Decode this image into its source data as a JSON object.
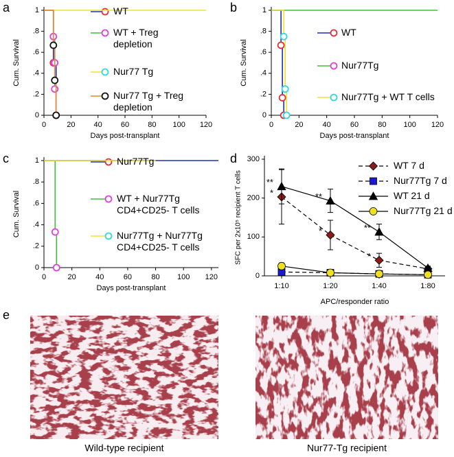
{
  "chart_data": [
    {
      "label": "a",
      "type": "survival",
      "xlabel": "Days post-transplant",
      "ylabel": "Cum. Survival",
      "xlim": [
        0,
        120
      ],
      "xticks": [
        0,
        20,
        40,
        60,
        80,
        100,
        120
      ],
      "ylim": [
        0,
        1
      ],
      "yticks": [
        0,
        {
          "value": 0.2,
          "label": ".2"
        },
        {
          "value": 0.4,
          "label": ".4"
        },
        {
          "value": 0.6,
          "label": ".6"
        },
        {
          "value": 0.8,
          "label": ".8"
        },
        1
      ],
      "series": [
        {
          "name": "WT",
          "color": "#1f2fb5",
          "marker_color": "#e0303a",
          "x": [
            0,
            7,
            9
          ],
          "values": [
            1,
            0.5,
            0
          ]
        },
        {
          "name": "WT + Treg depletion",
          "color": "#3fc23f",
          "marker_color": "#e040e0",
          "x": [
            0,
            7,
            8,
            8,
            9
          ],
          "values": [
            1,
            0.75,
            0.5,
            0.25,
            0
          ]
        },
        {
          "name": "Nur77 Tg",
          "color": "#f2e030",
          "marker_color": "#30d8e0",
          "x": [
            0,
            120
          ],
          "values": [
            1,
            1
          ]
        },
        {
          "name": "Nur77 Tg + Treg depletion",
          "color": "#e8852a",
          "marker_color": "#111111",
          "x": [
            0,
            7,
            8,
            9
          ],
          "values": [
            1,
            0.667,
            0.333,
            0
          ]
        }
      ]
    },
    {
      "label": "b",
      "type": "survival",
      "xlabel": "Days post-transplant",
      "ylabel": "Cum. Survival",
      "xlim": [
        0,
        120
      ],
      "xticks": [
        0,
        20,
        40,
        60,
        80,
        100,
        120
      ],
      "ylim": [
        0,
        1
      ],
      "yticks": [
        0,
        {
          "value": 0.2,
          "label": ".2"
        },
        {
          "value": 0.4,
          "label": ".4"
        },
        {
          "value": 0.6,
          "label": ".6"
        },
        {
          "value": 0.8,
          "label": ".8"
        },
        1
      ],
      "series": [
        {
          "name": "WT",
          "color": "#1f2fb5",
          "marker_color": "#e0303a",
          "x": [
            0,
            7,
            8,
            9
          ],
          "values": [
            1,
            0.667,
            0.167,
            0
          ]
        },
        {
          "name": "Nur77Tg",
          "color": "#3fc23f",
          "marker_color": "#e040e0",
          "x": [
            0,
            120
          ],
          "values": [
            1,
            1
          ]
        },
        {
          "name": "Nur77Tg + WT T cells",
          "color": "#f2e030",
          "marker_color": "#30d8e0",
          "x": [
            0,
            9,
            10,
            11
          ],
          "values": [
            1,
            0.75,
            0.25,
            0
          ]
        }
      ]
    },
    {
      "label": "c",
      "type": "survival",
      "xlabel": "Days post-transplant",
      "ylabel": "Cum. Survival",
      "xlim": [
        0,
        125
      ],
      "xticks": [
        0,
        20,
        40,
        60,
        80,
        100,
        120
      ],
      "ylim": [
        0,
        1
      ],
      "yticks": [
        0,
        {
          "value": 0.2,
          "label": ".2"
        },
        {
          "value": 0.4,
          "label": ".4"
        },
        {
          "value": 0.6,
          "label": ".6"
        },
        {
          "value": 0.8,
          "label": ".8"
        },
        1
      ],
      "series": [
        {
          "name": "Nur77Tg",
          "color": "#1f2fb5",
          "marker_color": "#e0303a",
          "x": [
            0,
            125
          ],
          "values": [
            1,
            1
          ]
        },
        {
          "name": "WT + Nur77Tg CD4+CD25- T cells",
          "color": "#3fc23f",
          "marker_color": "#e040e0",
          "x": [
            0,
            8,
            9
          ],
          "values": [
            1,
            0.333,
            0
          ]
        },
        {
          "name": "Nur77Tg + Nur77Tg CD4+CD25- T cells",
          "color": "#f2e030",
          "marker_color": "#30d8e0",
          "x": [
            0,
            80
          ],
          "values": [
            1,
            1
          ]
        }
      ]
    },
    {
      "label": "d",
      "type": "line",
      "xlabel": "APC/responder ratio",
      "ylabel": "SFC per 2x10⁵ recipient T cells",
      "categories": [
        "1:10",
        "1:20",
        "1:40",
        "1:80"
      ],
      "ylim": [
        0,
        300
      ],
      "yticks": [
        0,
        100,
        200,
        300
      ],
      "series": [
        {
          "name": "WT 7 d",
          "color": "#8b1a1a",
          "marker": "diamond",
          "dashed": true,
          "values": [
            203,
            105,
            40,
            18
          ],
          "errors": [
            70,
            38,
            18,
            5
          ]
        },
        {
          "name": "Nur77Tg 7 d",
          "color": "#1a1ad0",
          "marker": "square",
          "dashed": true,
          "values": [
            10,
            8,
            5,
            3
          ],
          "errors": [
            5,
            4,
            3,
            2
          ]
        },
        {
          "name": "WT 21 d",
          "color": "#000000",
          "marker": "triangle",
          "dashed": false,
          "values": [
            230,
            193,
            113,
            20
          ],
          "errors": [
            45,
            30,
            20,
            5
          ]
        },
        {
          "name": "Nur77Tg 21 d",
          "color": "#f0e020",
          "marker": "circle",
          "dashed": false,
          "values": [
            25,
            8,
            5,
            3
          ],
          "errors": [
            8,
            5,
            3,
            2
          ]
        }
      ],
      "annotations": [
        {
          "text": "**",
          "series": 2,
          "index": 0
        },
        {
          "text": "*",
          "series": 0,
          "index": 0
        },
        {
          "text": "**",
          "series": 2,
          "index": 1
        },
        {
          "text": "*",
          "series": 0,
          "index": 1
        },
        {
          "text": "**",
          "series": 2,
          "index": 2
        },
        {
          "text": "*",
          "series": 0,
          "index": 2
        }
      ]
    }
  ],
  "images": {
    "label": "e",
    "captions": [
      "Wild-type recipient",
      "Nur77-Tg recipient"
    ]
  }
}
